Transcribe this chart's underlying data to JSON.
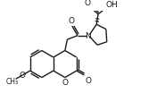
{
  "background": "#ffffff",
  "line_color": "#1a1a1a",
  "line_width": 1.0,
  "figsize": [
    1.76,
    1.15
  ],
  "dpi": 100,
  "text_color": "#1a1a1a",
  "font_size": 6.5,
  "xlim": [
    0,
    176
  ],
  "ylim": [
    0,
    115
  ]
}
